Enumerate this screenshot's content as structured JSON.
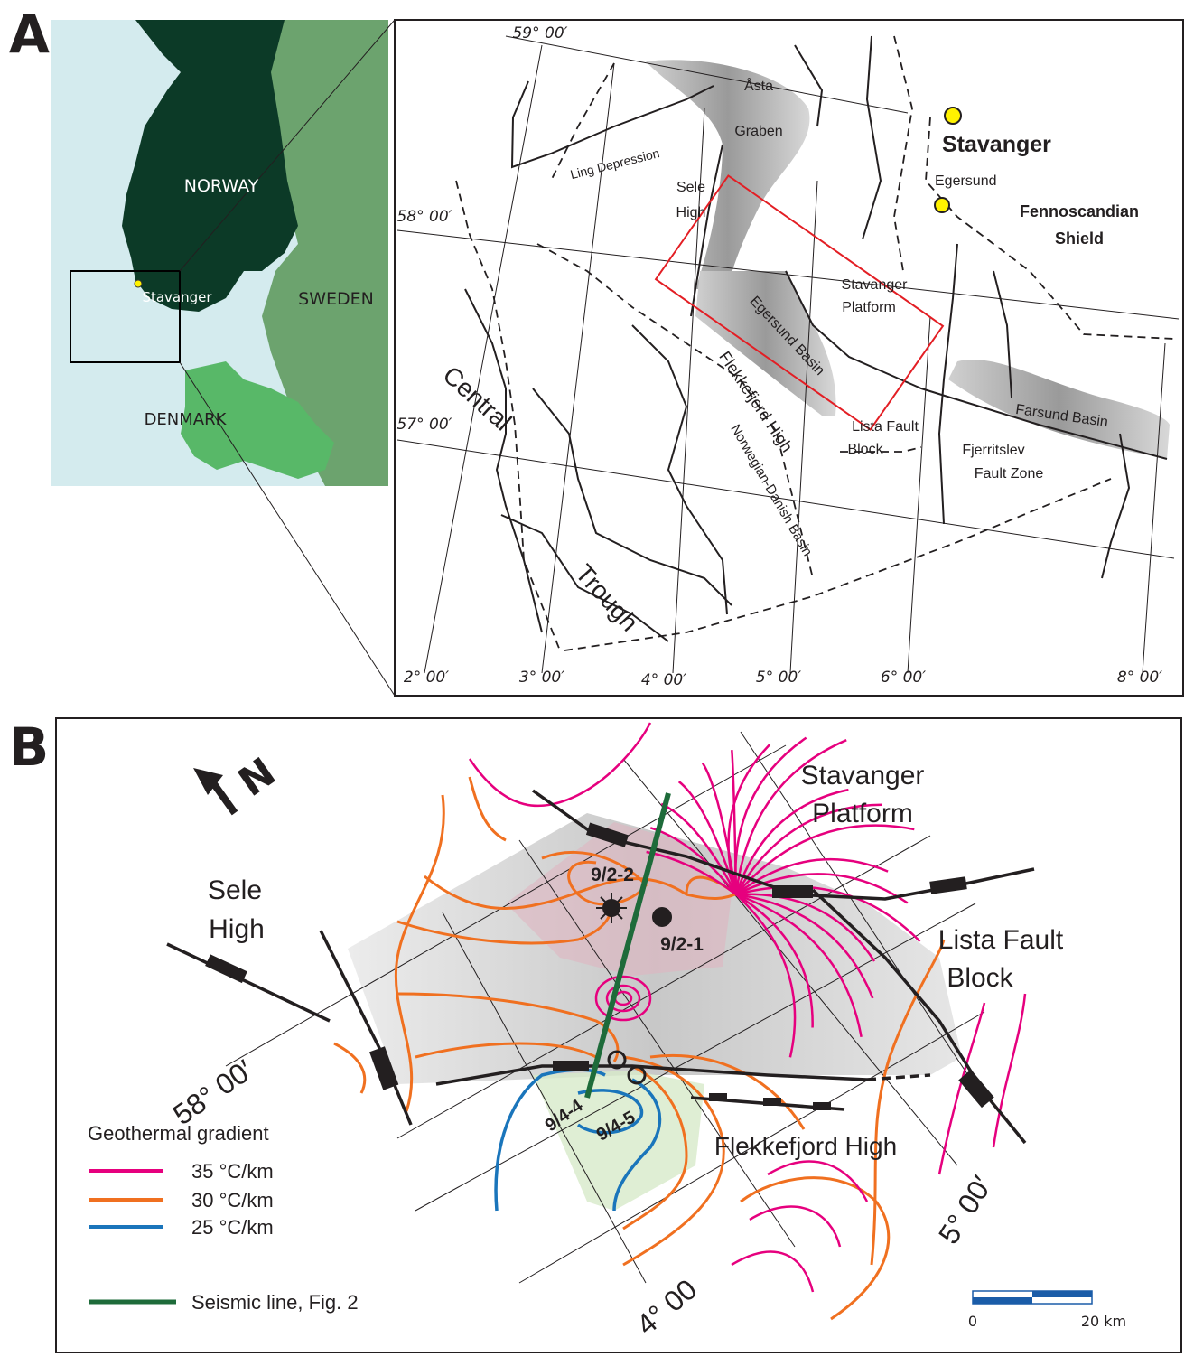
{
  "panel_a": {
    "label": "A",
    "inset": {
      "norway": "NORWAY",
      "sweden": "SWEDEN",
      "denmark": "DENMARK",
      "stavanger": "Stavanger"
    },
    "map": {
      "latitudes": [
        "59° 00′",
        "58° 00′",
        "57° 00′"
      ],
      "longitudes": [
        "2° 00′",
        "3° 00′",
        "4° 00′",
        "5° 00′",
        "6° 00′",
        "8° 00′"
      ],
      "asta_graben": [
        "Åsta",
        "Graben"
      ],
      "ling_depression": "Ling Depression",
      "sele_high": [
        "Sele",
        "High"
      ],
      "stavanger": "Stavanger",
      "egersund": "Egersund",
      "fennoscandian_shield": [
        "Fennoscandian",
        "Shield"
      ],
      "stavanger_platform": [
        "Stavanger",
        "Platform"
      ],
      "egersund_basin": "Egersund Basin",
      "lista_fault_block": [
        "Lista Fault",
        "Block"
      ],
      "farsund_basin": "Farsund Basin",
      "fjerritslev_fault_zone": [
        "Fjerritslev",
        "Fault Zone"
      ],
      "central_trough": [
        "Central",
        "Trough"
      ],
      "flekkefjord_high": "Flekkefjord High",
      "norwegian_danish_basin": "Norwegian-Danish Basin"
    }
  },
  "panel_b": {
    "label": "B",
    "north": "N",
    "stavanger_platform": [
      "Stavanger",
      "Platform"
    ],
    "sele_high": [
      "Sele",
      "High"
    ],
    "lista_fault_block": [
      "Lista Fault",
      "Block"
    ],
    "latitude": "58° 00′",
    "longitudes": [
      "5° 00′",
      "4° 00"
    ],
    "wells": [
      "9/2-2",
      "9/2-1",
      "9/4-4",
      "9/4-5"
    ],
    "flekkefjord_high": "Flekkefjord High",
    "legend": {
      "title": "Geothermal gradient",
      "items": [
        "35 °C/km",
        "30 °C/km",
        "25 °C/km"
      ],
      "seismic": "Seismic line, Fig. 2"
    },
    "scale": {
      "start": "0",
      "end": "20 km"
    }
  }
}
